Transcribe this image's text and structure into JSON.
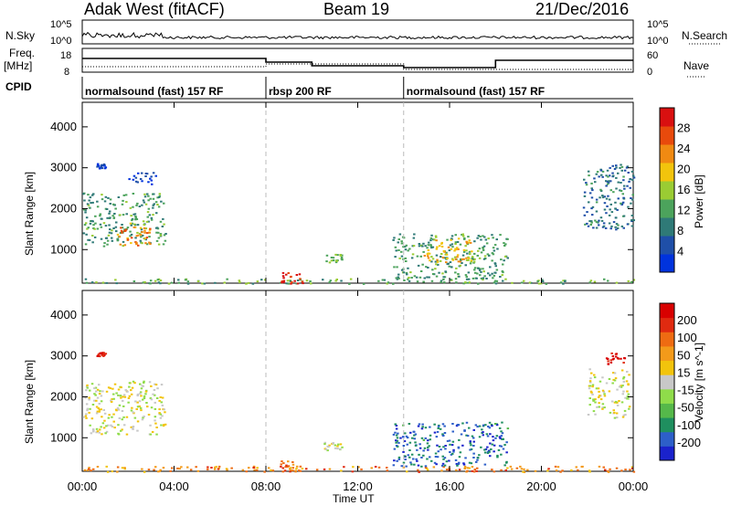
{
  "header": {
    "station": "Adak West (fitACF)",
    "beam": "Beam 19",
    "date": "21/Dec/2016"
  },
  "panels": {
    "nsky_label": "N.Sky",
    "nsky_ticks": [
      "10^5",
      "10^0"
    ],
    "nsearch_label": "N.Search",
    "nsearch_ticks": [
      "10^5",
      "10^0"
    ],
    "freq_label": "Freq.",
    "freq_unit": "[MHz]",
    "freq_ticks": [
      "18",
      "8"
    ],
    "nave_label": "Nave",
    "nave_ticks": [
      "60",
      "0"
    ],
    "cpid_label": "CPID"
  },
  "cpid_segments": [
    {
      "label": "normalsound (fast) 157 RF",
      "start_hour": 0,
      "end_hour": 8
    },
    {
      "label": "rbsp 200 RF",
      "start_hour": 8,
      "end_hour": 14
    },
    {
      "label": "normalsound (fast) 157 RF",
      "start_hour": 14,
      "end_hour": 24
    }
  ],
  "chart_data": [
    {
      "type": "heatmap",
      "name": "power",
      "ylabel": "Slant Range [km]",
      "yticks": [
        1000,
        2000,
        3000,
        4000
      ],
      "ylim": [
        180,
        4600
      ],
      "xlim": [
        0,
        24
      ],
      "colorbar_label": "Power [dB]",
      "colorbar_ticks": [
        4,
        8,
        12,
        16,
        20,
        24,
        28
      ],
      "colorbar_colors": [
        "#0033dd",
        "#1f4fa8",
        "#2f7a77",
        "#4ca35c",
        "#9acc33",
        "#f2c40c",
        "#f08a12",
        "#e84a0c",
        "#d91010"
      ],
      "regions": [
        {
          "x": [
            0.0,
            3.6
          ],
          "y": [
            1100,
            2400
          ],
          "level": 0.35
        },
        {
          "x": [
            1.5,
            3.0
          ],
          "y": [
            1100,
            1700
          ],
          "level": 0.75
        },
        {
          "x": [
            0.6,
            1.0
          ],
          "y": [
            3000,
            3120
          ],
          "level": 0.1
        },
        {
          "x": [
            2.0,
            3.2
          ],
          "y": [
            2600,
            2900
          ],
          "level": 0.1
        },
        {
          "x": [
            0.0,
            24.0
          ],
          "y": [
            180,
            300
          ],
          "level": 0.4
        },
        {
          "x": [
            8.6,
            9.6
          ],
          "y": [
            180,
            450
          ],
          "level": 0.95
        },
        {
          "x": [
            10.5,
            11.3
          ],
          "y": [
            700,
            900
          ],
          "level": 0.45
        },
        {
          "x": [
            13.5,
            18.5
          ],
          "y": [
            300,
            1400
          ],
          "level": 0.35
        },
        {
          "x": [
            14.8,
            17.0
          ],
          "y": [
            700,
            1300
          ],
          "level": 0.65
        },
        {
          "x": [
            21.8,
            24.0
          ],
          "y": [
            1500,
            3100
          ],
          "level": 0.25
        }
      ]
    },
    {
      "type": "heatmap",
      "name": "velocity",
      "ylabel": "Slant Range [km]",
      "yticks": [
        1000,
        2000,
        3000,
        4000
      ],
      "ylim": [
        180,
        4600
      ],
      "xlim": [
        0,
        24
      ],
      "xticks": [
        "00:00",
        "04:00",
        "08:00",
        "12:00",
        "16:00",
        "20:00",
        "00:00"
      ],
      "xlabel": "Time UT",
      "colorbar_label": "Velocity [m s^-1]",
      "colorbar_ticks": [
        "200",
        "100",
        "50",
        "15",
        "-15",
        "-50",
        "-100",
        "-200"
      ],
      "colorbar_colors": [
        "#1a22cc",
        "#2d5fc9",
        "#1f8f5f",
        "#55b84a",
        "#8fdc4a",
        "#c8c8c8",
        "#f2c40c",
        "#f39a1a",
        "#ee6b12",
        "#e02a10",
        "#d80000"
      ],
      "regions": [
        {
          "x": [
            0.0,
            3.6
          ],
          "y": [
            1100,
            2400
          ],
          "level": 0.5
        },
        {
          "x": [
            0.6,
            1.0
          ],
          "y": [
            3000,
            3120
          ],
          "level": 0.95
        },
        {
          "x": [
            0.0,
            24.0
          ],
          "y": [
            180,
            320
          ],
          "level": 0.72
        },
        {
          "x": [
            8.6,
            9.6
          ],
          "y": [
            180,
            450
          ],
          "level": 0.8
        },
        {
          "x": [
            10.5,
            11.3
          ],
          "y": [
            700,
            900
          ],
          "level": 0.5
        },
        {
          "x": [
            13.5,
            18.5
          ],
          "y": [
            300,
            1400
          ],
          "level": 0.15
        },
        {
          "x": [
            22.0,
            23.8
          ],
          "y": [
            1500,
            2700
          ],
          "level": 0.5
        },
        {
          "x": [
            22.8,
            23.6
          ],
          "y": [
            2800,
            3100
          ],
          "level": 0.95
        }
      ]
    }
  ]
}
